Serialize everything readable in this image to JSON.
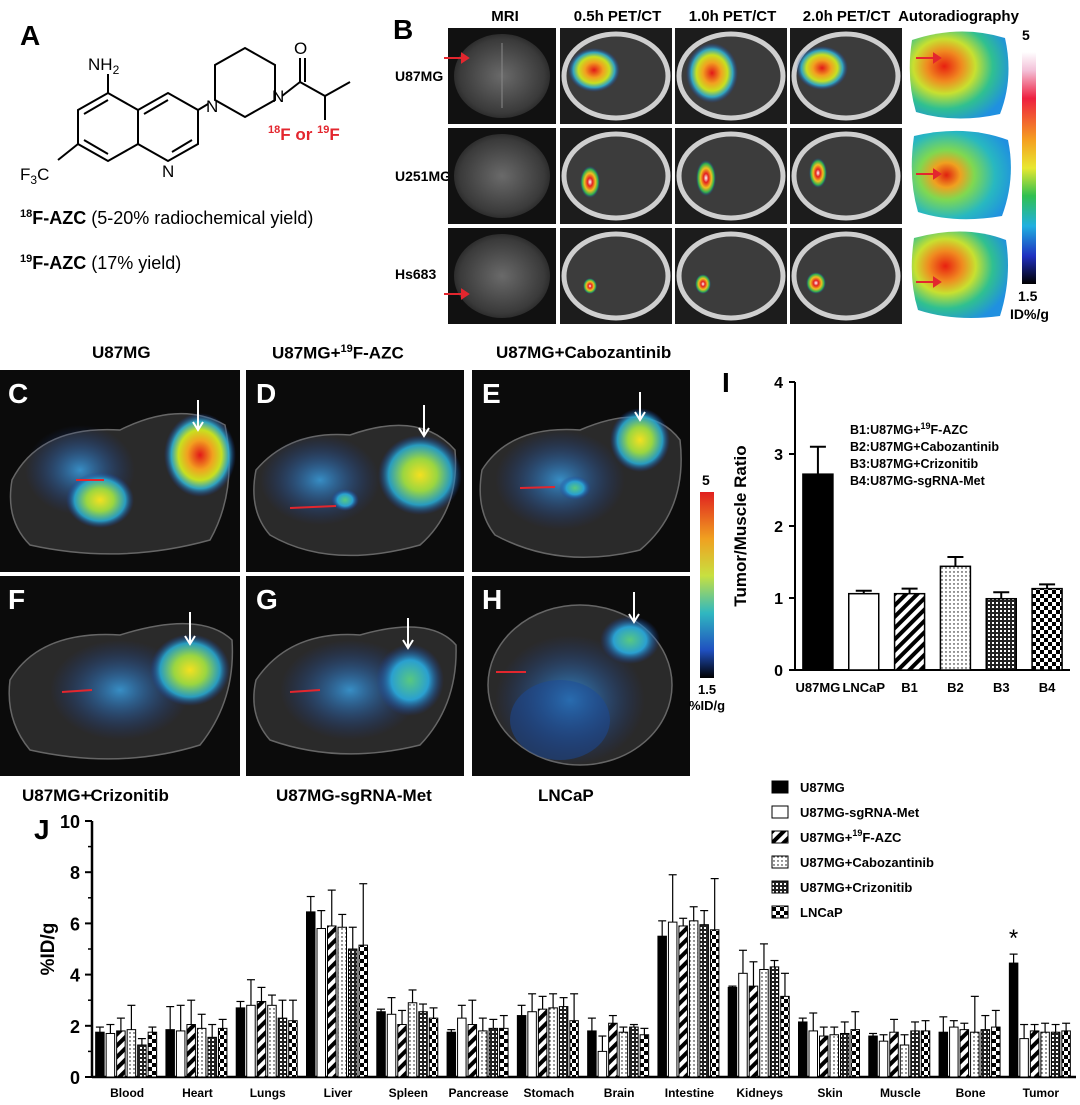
{
  "panelA": {
    "label": "A",
    "nh2": "NH",
    "nh2_sub": "2",
    "ring_n": "N",
    "cf3": "F",
    "cf3_sub": "3",
    "cf3_c": "C",
    "pip_n1": "N",
    "pip_n2": "N",
    "carbonyl_o": "O",
    "label_18f_sup": "18",
    "label_f": "F or ",
    "label_19f_sup": "19",
    "label_f2": "F",
    "line1_sup": "18",
    "line1_bold": "F-AZC",
    "line1_rest": " (5-20% radiochemical yield)",
    "line2_sup": "19",
    "line2_bold": "F-AZC",
    "line2_rest": " (17%  yield)"
  },
  "panelB": {
    "label": "B",
    "columns": [
      "MRI",
      "0.5h PET/CT",
      "1.0h PET/CT",
      "2.0h PET/CT",
      "Autoradiography"
    ],
    "rows": [
      "U87MG",
      "U251MG",
      "Hs683"
    ],
    "scale_max": "5",
    "scale_min": "1.5",
    "scale_unit": "ID%/g"
  },
  "panelsCH": {
    "titles_top": [
      "U87MG",
      "U87MG+",
      "U87MG+Cabozantinib"
    ],
    "title_d_sup": "19",
    "title_d_rest": "F-AZC",
    "titles_bottom": [
      "U87MG+Crizonitib",
      "U87MG-sgRNA-Met",
      "LNCaP"
    ],
    "letters": [
      "C",
      "D",
      "E",
      "F",
      "G",
      "H"
    ],
    "scale_max": "5",
    "scale_min": "1.5",
    "scale_unit": "%ID/g"
  },
  "panelI_legend": [
    "B1:U87MG+",
    "B2:U87MG+Cabozantinib",
    "B3:U87MG+Crizonitib",
    "B4:U87MG-sgRNA-Met"
  ],
  "panelI_legend_b1_sup": "19",
  "panelI_legend_b1_rest": "F-AZC",
  "panelJ_legend_sup": "19",
  "chart_data": [
    {
      "panel": "I",
      "type": "bar",
      "categories": [
        "U87MG",
        "LNCaP",
        "B1",
        "B2",
        "B3",
        "B4"
      ],
      "values": [
        2.72,
        1.06,
        1.06,
        1.44,
        0.99,
        1.13
      ],
      "errors": [
        0.38,
        0.04,
        0.07,
        0.13,
        0.09,
        0.06
      ],
      "patterns": [
        "solid",
        "white",
        "diag",
        "dots",
        "dense",
        "check"
      ],
      "ylabel": "Tumor/Muscle Ratio",
      "ylim": [
        0,
        4
      ],
      "yticks": [
        "0",
        "1",
        "2",
        "3",
        "4"
      ]
    },
    {
      "panel": "J",
      "type": "bar",
      "categories": [
        "Blood",
        "Heart",
        "Lungs",
        "Liver",
        "Spleen",
        "Pancrease",
        "Stomach",
        "Brain",
        "Intestine",
        "Kidneys",
        "Skin",
        "Muscle",
        "Bone",
        "Tumor"
      ],
      "ylabel": "%ID/g",
      "ylim": [
        0,
        10
      ],
      "yticks": [
        "0",
        "2",
        "4",
        "6",
        "8",
        "10"
      ],
      "annotation": "*",
      "series": [
        {
          "name": "U87MG",
          "pattern": "solid",
          "values": [
            1.75,
            1.85,
            2.7,
            6.45,
            2.55,
            1.75,
            2.4,
            1.8,
            5.5,
            3.5,
            2.15,
            1.6,
            1.75,
            4.45
          ],
          "errors": [
            0.2,
            0.9,
            0.25,
            0.6,
            0.1,
            0.1,
            0.4,
            0.5,
            0.6,
            0.05,
            0.15,
            0.1,
            0.6,
            0.35
          ]
        },
        {
          "name": "U87MG-sgRNA-Met",
          "pattern": "white",
          "values": [
            1.7,
            1.8,
            2.8,
            5.8,
            2.45,
            2.3,
            2.55,
            1.0,
            6.05,
            4.05,
            1.8,
            1.4,
            1.95,
            1.5
          ],
          "errors": [
            0.35,
            1.0,
            1.0,
            0.7,
            0.65,
            0.5,
            0.7,
            0.6,
            1.85,
            0.9,
            0.7,
            0.25,
            0.25,
            0.55
          ]
        },
        {
          "name": "U87MG+19F-AZC",
          "pattern": "diag",
          "values": [
            1.8,
            2.05,
            2.95,
            5.9,
            2.05,
            2.05,
            2.65,
            2.1,
            5.9,
            3.55,
            1.6,
            1.75,
            1.85,
            1.8
          ],
          "errors": [
            0.5,
            0.95,
            0.55,
            1.4,
            0.55,
            0.95,
            0.5,
            0.3,
            0.3,
            0.95,
            0.35,
            0.5,
            0.25,
            0.25
          ]
        },
        {
          "name": "U87MG+Cabozantinib",
          "pattern": "dots",
          "values": [
            1.85,
            1.9,
            2.8,
            5.85,
            2.9,
            1.8,
            2.7,
            1.75,
            6.1,
            4.2,
            1.65,
            1.25,
            1.75,
            1.75
          ],
          "errors": [
            0.95,
            0.55,
            0.4,
            0.5,
            0.5,
            0.5,
            0.55,
            0.2,
            0.55,
            1.0,
            0.3,
            0.4,
            1.4,
            0.35
          ]
        },
        {
          "name": "U87MG+Crizonitib",
          "pattern": "dense",
          "values": [
            1.25,
            1.55,
            2.3,
            5.0,
            2.55,
            1.9,
            2.75,
            1.95,
            5.95,
            4.3,
            1.7,
            1.8,
            1.85,
            1.75
          ],
          "errors": [
            0.25,
            0.5,
            0.7,
            0.85,
            0.3,
            0.35,
            0.35,
            0.1,
            0.55,
            0.25,
            0.45,
            0.35,
            0.55,
            0.3
          ]
        },
        {
          "name": "LNCaP",
          "pattern": "check",
          "values": [
            1.75,
            1.9,
            2.2,
            5.15,
            2.3,
            1.9,
            2.2,
            1.65,
            5.75,
            3.15,
            1.85,
            1.8,
            1.95,
            1.8
          ],
          "errors": [
            0.2,
            0.35,
            0.8,
            2.4,
            0.4,
            0.5,
            1.05,
            0.25,
            2.0,
            0.9,
            0.7,
            0.4,
            0.65,
            0.3
          ]
        }
      ]
    }
  ]
}
